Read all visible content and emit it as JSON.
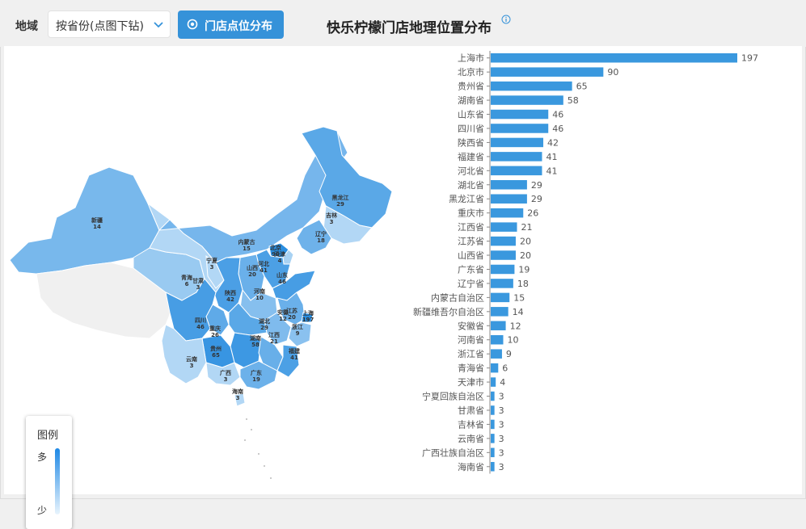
{
  "toolbar": {
    "region_label": "地域",
    "select_value": "按省份(点图下钻)",
    "button_label": "门店点位分布",
    "title": "快乐柠檬门店地理位置分布"
  },
  "legend": {
    "title": "图例",
    "high": "多",
    "low": "少"
  },
  "colors": {
    "bar": "#3a98de",
    "button": "#3592d9",
    "map_low": "#eef7fe",
    "map_high": "#2a8ee0"
  },
  "map_labels": [
    {
      "name": "新疆",
      "value": "14"
    },
    {
      "name": "黑龙江",
      "value": "29"
    },
    {
      "name": "吉林",
      "value": "3"
    },
    {
      "name": "辽宁",
      "value": "18"
    },
    {
      "name": "内蒙古",
      "value": "15"
    },
    {
      "name": "北京",
      "value": "90"
    },
    {
      "name": "天津",
      "value": "4"
    },
    {
      "name": "宁夏",
      "value": "3"
    },
    {
      "name": "山西",
      "value": "20"
    },
    {
      "name": "河北",
      "value": "41"
    },
    {
      "name": "山东",
      "value": "46"
    },
    {
      "name": "青海",
      "value": "6"
    },
    {
      "name": "甘肃",
      "value": "3"
    },
    {
      "name": "陕西",
      "value": "42"
    },
    {
      "name": "河南",
      "value": "10"
    },
    {
      "name": "安徽",
      "value": "12"
    },
    {
      "name": "江苏",
      "value": "20"
    },
    {
      "name": "上海",
      "value": "197"
    },
    {
      "name": "浙江",
      "value": "9"
    },
    {
      "name": "四川",
      "value": "46"
    },
    {
      "name": "重庆",
      "value": "26"
    },
    {
      "name": "湖北",
      "value": "29"
    },
    {
      "name": "江西",
      "value": "21"
    },
    {
      "name": "湖南",
      "value": "58"
    },
    {
      "name": "贵州",
      "value": "65"
    },
    {
      "name": "福建",
      "value": "41"
    },
    {
      "name": "云南",
      "value": "3"
    },
    {
      "name": "广西",
      "value": "3"
    },
    {
      "name": "广东",
      "value": "19"
    },
    {
      "name": "海南",
      "value": "3"
    }
  ],
  "chart_data": {
    "type": "bar",
    "orientation": "horizontal",
    "categories": [
      "上海市",
      "北京市",
      "贵州省",
      "湖南省",
      "山东省",
      "四川省",
      "陕西省",
      "福建省",
      "河北省",
      "湖北省",
      "黑龙江省",
      "重庆市",
      "江西省",
      "江苏省",
      "山西省",
      "广东省",
      "辽宁省",
      "内蒙古自治区",
      "新疆维吾尔自治区",
      "安徽省",
      "河南省",
      "浙江省",
      "青海省",
      "天津市",
      "宁夏回族自治区",
      "甘肃省",
      "吉林省",
      "云南省",
      "广西壮族自治区",
      "海南省"
    ],
    "values": [
      197,
      90,
      65,
      58,
      46,
      46,
      42,
      41,
      41,
      29,
      29,
      26,
      21,
      20,
      20,
      19,
      18,
      15,
      14,
      12,
      10,
      9,
      6,
      4,
      3,
      3,
      3,
      3,
      3,
      3
    ],
    "xlim": [
      0,
      200
    ]
  }
}
